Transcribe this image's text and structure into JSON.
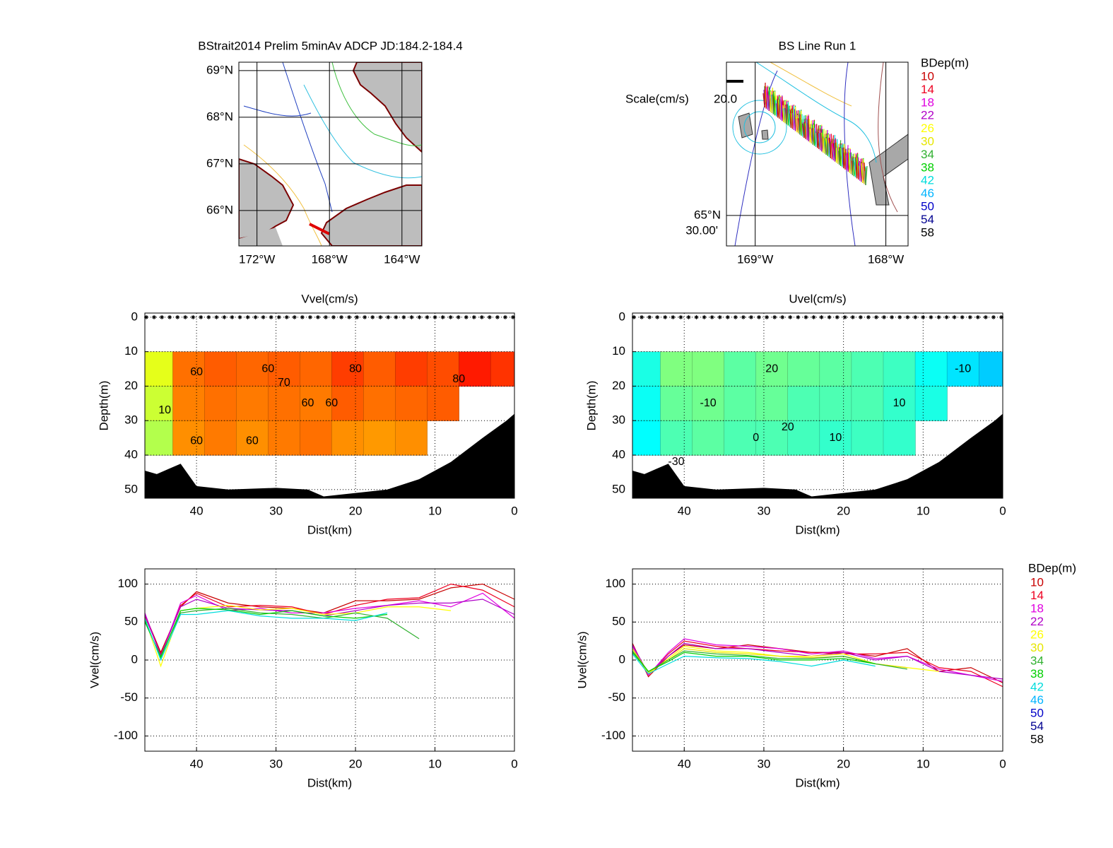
{
  "maps": [
    {
      "title": "BStrait2014 Prelim 5minAv ADCP JD:184.2-184.4",
      "xlim": [
        -173,
        -162.9
      ],
      "ylim": [
        65.24,
        69.18
      ],
      "lat_ticks": [
        {
          "value": 69,
          "label": "69°N"
        },
        {
          "value": 68,
          "label": "68°N"
        },
        {
          "value": 67,
          "label": "67°N"
        },
        {
          "value": 66,
          "label": "66°N"
        }
      ],
      "lon_ticks": [
        {
          "value": -172,
          "label": "172°W"
        },
        {
          "value": -168,
          "label": "168°W"
        },
        {
          "value": -164,
          "label": "164°W"
        }
      ]
    },
    {
      "title": "BS Line Run 1",
      "xlim": [
        -169.22,
        -167.83
      ],
      "ylim": [
        65.417,
        65.917
      ],
      "lat_ticks": [
        {
          "value": 65.5,
          "label": "65°N"
        }
      ],
      "lat_minutes_label": "30.00'",
      "lon_ticks": [
        {
          "value": -169,
          "label": "169°W"
        },
        {
          "value": -168,
          "label": "168°W"
        }
      ],
      "scale_label": "Scale(cm/s)",
      "scale": {
        "value": 20,
        "label": "20.0"
      },
      "legend_title": "BDep(m)",
      "legend_depths": [
        10,
        14,
        18,
        22,
        26,
        30,
        34,
        38,
        42,
        46,
        50,
        54,
        58
      ],
      "legend_colors": [
        "#c80000",
        "#ee0020",
        "#e000e0",
        "#b000c8",
        "#ffff00",
        "#e6e600",
        "#30b030",
        "#00d000",
        "#00dcdc",
        "#00b4ff",
        "#0000c8",
        "#000090",
        "#000000"
      ]
    }
  ],
  "chart_data": [
    {
      "type": "contour",
      "title": "Vvel(cm/s)",
      "x_label": "Dist(km)",
      "y_label": "Depth(m)",
      "xlim": [
        46.5,
        0
      ],
      "ylim": [
        -1.2,
        52.5
      ],
      "y_reversed": true,
      "xticks": [
        40,
        30,
        20,
        10,
        0
      ],
      "yticks": [
        0,
        10,
        20,
        30,
        40,
        50
      ],
      "clim": [
        -85,
        115
      ],
      "grid": true,
      "grid_x": [
        45,
        41,
        37,
        33,
        29,
        25,
        21,
        17,
        13,
        9,
        5,
        1
      ],
      "grid_depth": [
        15,
        25,
        35
      ],
      "field": [
        [
          35,
          68,
          72,
          70,
          72,
          70,
          78,
          72,
          78,
          75,
          85,
          80
        ],
        [
          30,
          65,
          68,
          66,
          68,
          66,
          72,
          68,
          70,
          72,
          null,
          null
        ],
        [
          25,
          62,
          66,
          62,
          66,
          68,
          62,
          60,
          62,
          null,
          null,
          null
        ]
      ],
      "contour_labels": [
        {
          "x": 40,
          "depth": 16,
          "level": 60
        },
        {
          "x": 31,
          "depth": 15,
          "level": 60
        },
        {
          "x": 29,
          "depth": 19,
          "level": 70
        },
        {
          "x": 26,
          "depth": 25,
          "level": 60
        },
        {
          "x": 23,
          "depth": 25,
          "level": 60
        },
        {
          "x": 20,
          "depth": 15,
          "level": 80
        },
        {
          "x": 7,
          "depth": 18,
          "level": 80
        },
        {
          "x": 44,
          "depth": 27,
          "level": 10
        },
        {
          "x": 40,
          "depth": 36,
          "level": 60
        },
        {
          "x": 33,
          "depth": 36,
          "level": 60
        }
      ],
      "bottom": {
        "x": [
          46.5,
          45,
          43.5,
          42,
          40,
          36,
          30,
          26,
          24,
          20,
          16,
          12,
          8,
          4,
          1,
          0
        ],
        "depth": [
          44.5,
          45.5,
          44,
          42.5,
          49,
          50,
          49.5,
          50,
          52,
          51,
          50,
          47,
          42,
          35,
          30,
          28
        ]
      }
    },
    {
      "type": "contour",
      "title": "Uvel(cm/s)",
      "x_label": "Dist(km)",
      "y_label": "Depth(m)",
      "xlim": [
        46.5,
        0
      ],
      "ylim": [
        -1.2,
        52.5
      ],
      "y_reversed": true,
      "xticks": [
        40,
        30,
        20,
        10,
        0
      ],
      "yticks": [
        0,
        10,
        20,
        30,
        40,
        50
      ],
      "clim": [
        -85,
        115
      ],
      "grid": true,
      "grid_x": [
        45,
        41,
        37,
        33,
        29,
        25,
        21,
        17,
        13,
        9,
        5,
        1
      ],
      "grid_depth": [
        15,
        25,
        35
      ],
      "field": [
        [
          -5,
          15,
          15,
          8,
          12,
          10,
          8,
          5,
          2,
          -8,
          -15,
          -20
        ],
        [
          -8,
          10,
          12,
          8,
          10,
          5,
          5,
          5,
          0,
          -5,
          null,
          null
        ],
        [
          -10,
          5,
          8,
          5,
          5,
          3,
          0,
          2,
          0,
          null,
          null,
          null
        ]
      ],
      "contour_labels": [
        {
          "x": 29,
          "depth": 15,
          "level": 20
        },
        {
          "x": 5,
          "depth": 15,
          "level": -10
        },
        {
          "x": 37,
          "depth": 25,
          "level": -10
        },
        {
          "x": 27,
          "depth": 32,
          "level": 20
        },
        {
          "x": 13,
          "depth": 25,
          "level": 10
        },
        {
          "x": 21,
          "depth": 35,
          "level": 10
        },
        {
          "x": 31,
          "depth": 35,
          "level": 0
        },
        {
          "x": 41,
          "depth": 42,
          "level": -30
        }
      ],
      "bottom": {
        "x": [
          46.5,
          45,
          43.5,
          42,
          40,
          36,
          30,
          26,
          24,
          20,
          16,
          12,
          8,
          4,
          1,
          0
        ],
        "depth": [
          44.5,
          45.5,
          44,
          42.5,
          49,
          50,
          49.5,
          50,
          52,
          51,
          50,
          47,
          42,
          35,
          30,
          28
        ]
      }
    },
    {
      "type": "line",
      "x_label": "Dist(km)",
      "y_label": "Vvel(cm/s)",
      "xlim": [
        46.5,
        0
      ],
      "ylim": [
        -120,
        120
      ],
      "xticks": [
        40,
        30,
        20,
        10,
        0
      ],
      "yticks": [
        -100,
        -50,
        0,
        50,
        100
      ],
      "grid": true,
      "x": [
        46.5,
        44.5,
        42,
        40,
        36,
        32,
        28,
        24,
        20,
        16,
        12,
        8,
        4,
        0
      ],
      "series": [
        {
          "color": "#c80000",
          "values": [
            60,
            10,
            70,
            90,
            75,
            70,
            68,
            62,
            78,
            78,
            80,
            95,
            100,
            80
          ]
        },
        {
          "color": "#ee0020",
          "values": [
            58,
            8,
            72,
            88,
            70,
            72,
            70,
            60,
            72,
            80,
            82,
            100,
            92,
            70
          ]
        },
        {
          "color": "#e000e0",
          "values": [
            62,
            5,
            75,
            85,
            65,
            68,
            62,
            62,
            68,
            72,
            78,
            70,
            88,
            55
          ]
        },
        {
          "color": "#b000c8",
          "values": [
            60,
            6,
            70,
            80,
            68,
            66,
            65,
            58,
            65,
            72,
            75,
            75,
            80,
            60
          ]
        },
        {
          "color": "#ffff00",
          "values": [
            55,
            -8,
            65,
            68,
            72,
            66,
            68,
            60,
            62,
            70,
            70,
            65,
            null,
            null
          ]
        },
        {
          "color": "#30b030",
          "values": [
            50,
            5,
            62,
            65,
            68,
            62,
            60,
            55,
            62,
            55,
            28,
            null,
            null,
            null
          ]
        },
        {
          "color": "#00d000",
          "values": [
            52,
            3,
            65,
            68,
            66,
            60,
            65,
            58,
            55,
            60,
            null,
            null,
            null,
            null
          ]
        },
        {
          "color": "#00dcdc",
          "values": [
            55,
            0,
            60,
            60,
            65,
            58,
            55,
            55,
            52,
            62,
            null,
            null,
            null,
            null
          ]
        }
      ]
    },
    {
      "type": "line",
      "x_label": "Dist(km)",
      "y_label": "Uvel(cm/s)",
      "legend_title": "BDep(m)",
      "xlim": [
        46.5,
        0
      ],
      "ylim": [
        -120,
        120
      ],
      "xticks": [
        40,
        30,
        20,
        10,
        0
      ],
      "yticks": [
        -100,
        -50,
        0,
        50,
        100
      ],
      "grid": true,
      "x": [
        46.5,
        44.5,
        42,
        40,
        36,
        32,
        28,
        24,
        20,
        16,
        12,
        8,
        4,
        0
      ],
      "series": [
        {
          "name": "10",
          "color": "#c80000",
          "values": [
            22,
            -22,
            5,
            20,
            15,
            20,
            15,
            10,
            10,
            5,
            15,
            -15,
            -10,
            -30
          ]
        },
        {
          "name": "14",
          "color": "#ee0020",
          "values": [
            20,
            -20,
            8,
            25,
            18,
            15,
            12,
            10,
            8,
            8,
            10,
            -10,
            -15,
            -35
          ]
        },
        {
          "name": "18",
          "color": "#e000e0",
          "values": [
            18,
            -20,
            10,
            28,
            20,
            18,
            15,
            8,
            12,
            2,
            5,
            -12,
            -20,
            -28
          ]
        },
        {
          "name": "22",
          "color": "#b000c8",
          "values": [
            20,
            -18,
            5,
            22,
            15,
            15,
            10,
            5,
            10,
            0,
            5,
            -15,
            -20,
            -25
          ]
        },
        {
          "name": "26",
          "color": "#ffff00",
          "values": [
            15,
            -18,
            2,
            18,
            12,
            10,
            5,
            5,
            8,
            -5,
            -10,
            -15,
            null,
            null
          ]
        },
        {
          "name": "30",
          "color": "#e6e600",
          "values": [
            15,
            -16,
            0,
            15,
            10,
            8,
            5,
            3,
            5,
            -5,
            -10,
            null,
            null,
            null
          ]
        },
        {
          "name": "34",
          "color": "#30b030",
          "values": [
            12,
            -15,
            0,
            12,
            8,
            6,
            2,
            2,
            5,
            -5,
            -12,
            null,
            null,
            null
          ]
        },
        {
          "name": "38",
          "color": "#00d000",
          "values": [
            10,
            -15,
            -2,
            10,
            5,
            5,
            0,
            0,
            2,
            -5,
            null,
            null,
            null,
            null
          ]
        },
        {
          "name": "42",
          "color": "#00dcdc",
          "values": [
            8,
            -18,
            -5,
            5,
            3,
            2,
            -2,
            -8,
            0,
            -8,
            null,
            null,
            null,
            null
          ]
        },
        {
          "name": "46",
          "color": "#00b4ff",
          "values": [
            null,
            null,
            null,
            null,
            null,
            null,
            null,
            null,
            null,
            null,
            null,
            null,
            null,
            null
          ]
        },
        {
          "name": "50",
          "color": "#0000c8",
          "values": [
            null,
            null,
            null,
            null,
            null,
            null,
            null,
            null,
            null,
            null,
            null,
            null,
            null,
            null
          ]
        },
        {
          "name": "54",
          "color": "#000090",
          "values": [
            null,
            null,
            null,
            null,
            null,
            null,
            null,
            null,
            null,
            null,
            null,
            null,
            null,
            null
          ]
        },
        {
          "name": "58",
          "color": "#000000",
          "values": [
            null,
            null,
            null,
            null,
            null,
            null,
            null,
            null,
            null,
            null,
            null,
            null,
            null,
            null
          ]
        }
      ]
    }
  ]
}
